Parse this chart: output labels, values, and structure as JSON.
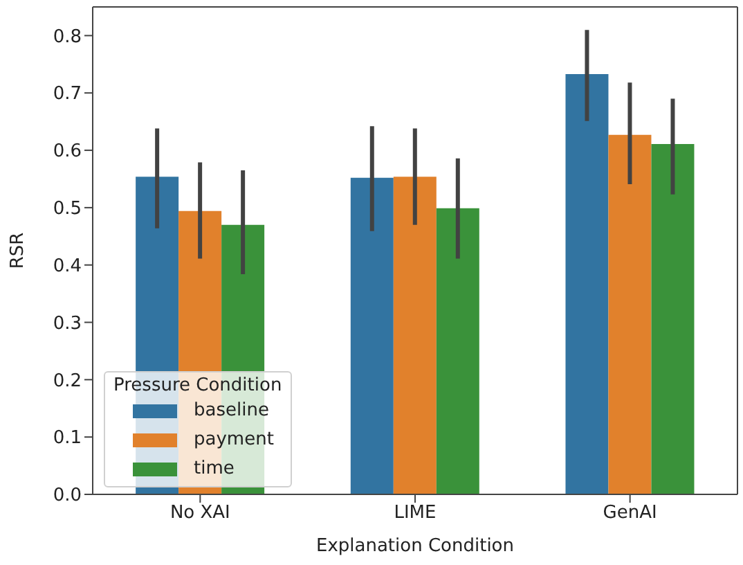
{
  "chart_data": {
    "type": "bar",
    "xlabel": "Explanation Condition",
    "ylabel": "RSR",
    "legend_title": "Pressure Condition",
    "categories": [
      "No XAI",
      "LIME",
      "GenAI"
    ],
    "series": [
      {
        "name": "baseline",
        "color": "#3274a1",
        "values": [
          0.554,
          0.552,
          0.733
        ],
        "errors": [
          [
            0.464,
            0.638
          ],
          [
            0.459,
            0.642
          ],
          [
            0.651,
            0.81
          ]
        ]
      },
      {
        "name": "payment",
        "color": "#e1812c",
        "values": [
          0.494,
          0.554,
          0.627
        ],
        "errors": [
          [
            0.411,
            0.579
          ],
          [
            0.47,
            0.638
          ],
          [
            0.541,
            0.718
          ]
        ]
      },
      {
        "name": "time",
        "color": "#3a923a",
        "values": [
          0.47,
          0.499,
          0.611
        ],
        "errors": [
          [
            0.384,
            0.565
          ],
          [
            0.411,
            0.586
          ],
          [
            0.523,
            0.69
          ]
        ]
      }
    ],
    "ylim": [
      0,
      0.85
    ],
    "yticks": [
      {
        "value": 0,
        "label": "0.0"
      },
      0.1,
      0.2,
      0.3,
      0.4,
      0.5,
      0.6,
      0.7,
      0.8
    ],
    "grid": false,
    "legend": "bottom left"
  }
}
